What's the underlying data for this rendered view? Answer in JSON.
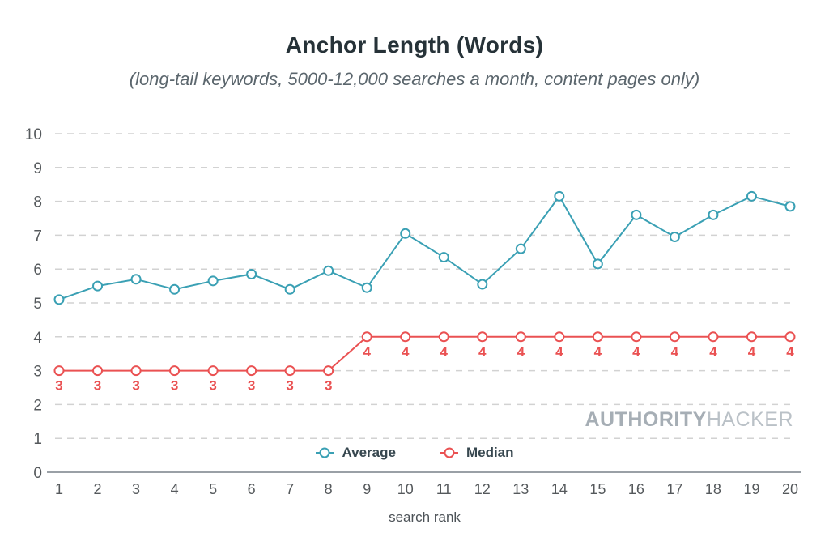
{
  "page": {
    "title": "Anchor Length (Words)",
    "subtitle": "(long-tail keywords, 5000-12,000 searches a month, content pages only)",
    "watermark_bold": "AUTHORITY",
    "watermark_light": "HACKER"
  },
  "chart_data": {
    "type": "line",
    "title": "Anchor Length (Words)",
    "subtitle": "(long-tail keywords, 5000-12,000 searches a month, content pages only)",
    "xlabel": "search rank",
    "ylabel": "",
    "x": [
      1,
      2,
      3,
      4,
      5,
      6,
      7,
      8,
      9,
      10,
      11,
      12,
      13,
      14,
      15,
      16,
      17,
      18,
      19,
      20
    ],
    "ylim": [
      0,
      10
    ],
    "yticks": [
      0,
      1,
      2,
      3,
      4,
      5,
      6,
      7,
      8,
      9,
      10
    ],
    "grid": "horizontal-dashed",
    "legend_position": "bottom-center-inside",
    "series": [
      {
        "name": "Average",
        "color": "#3AA0B4",
        "marker": "open-circle",
        "show_data_labels": false,
        "values": [
          5.1,
          5.5,
          5.7,
          5.4,
          5.65,
          5.85,
          5.4,
          5.95,
          5.45,
          7.05,
          6.35,
          5.55,
          6.6,
          8.15,
          6.15,
          7.6,
          6.95,
          7.6,
          8.15,
          7.85
        ]
      },
      {
        "name": "Median",
        "color": "#EA5152",
        "marker": "open-circle",
        "show_data_labels": true,
        "values": [
          3,
          3,
          3,
          3,
          3,
          3,
          3,
          3,
          4,
          4,
          4,
          4,
          4,
          4,
          4,
          4,
          4,
          4,
          4,
          4
        ]
      }
    ]
  }
}
